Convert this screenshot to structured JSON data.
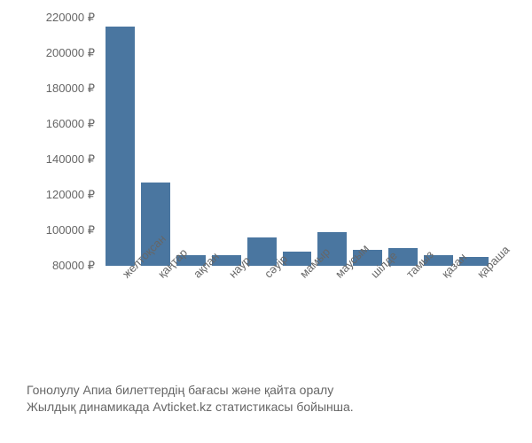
{
  "chart": {
    "type": "bar",
    "categories": [
      "желтоқсан",
      "қаңтар",
      "ақпан",
      "наур",
      "сәуір",
      "мамыр",
      "маусым",
      "шілде",
      "тамыз",
      "қазан",
      "қараша"
    ],
    "values": [
      215000,
      127000,
      86000,
      86000,
      96000,
      88000,
      99000,
      89000,
      90000,
      86000,
      85000
    ],
    "bar_color": "#4a76a0",
    "background_color": "#ffffff",
    "y_axis": {
      "min": 80000,
      "max": 220000,
      "tick_step": 20000,
      "ticks": [
        80000,
        100000,
        120000,
        140000,
        160000,
        180000,
        200000,
        220000
      ],
      "currency_suffix": " ₽"
    },
    "label_color": "#666666",
    "label_fontsize": 13,
    "x_label_rotation": -45
  },
  "caption": {
    "line1": "Гонолулу Апиа билеттердің бағасы және қайта оралу",
    "line2": "Жылдық динамикада Avticket.kz статистикасы бойынша.",
    "color": "#666666",
    "fontsize": 14
  }
}
